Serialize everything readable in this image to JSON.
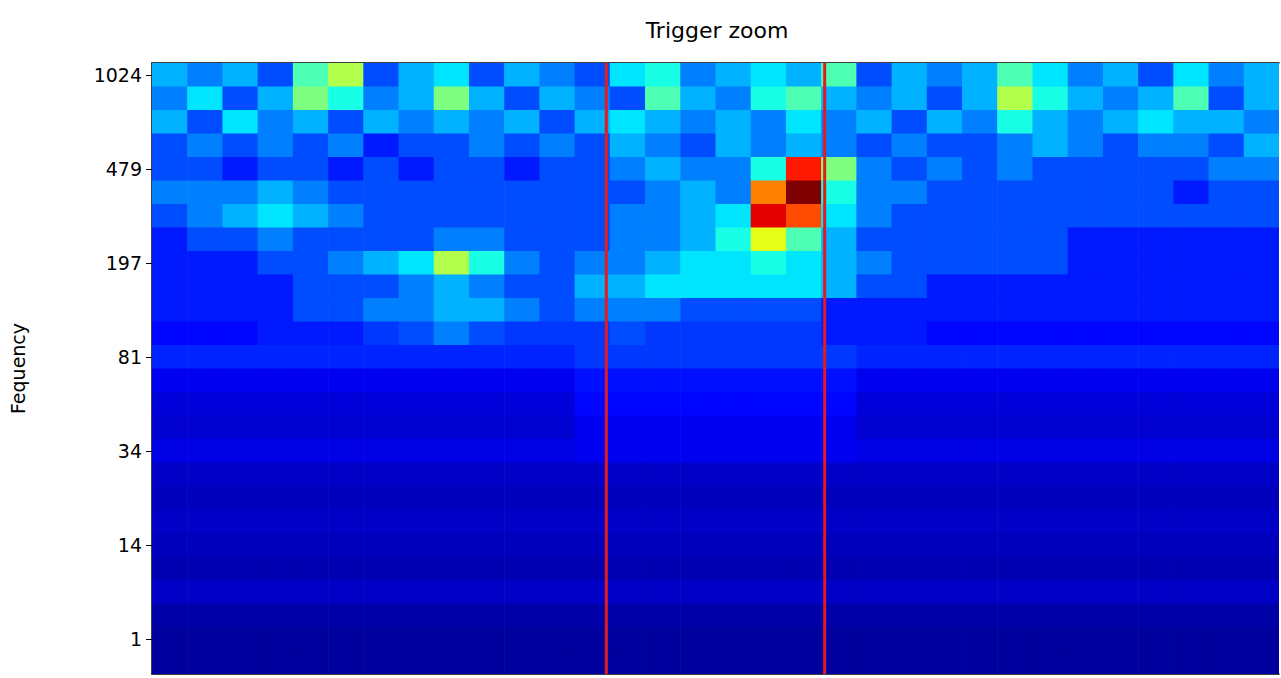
{
  "chart_data": {
    "type": "heatmap",
    "title": "Trigger zoom",
    "y_label": "Fequency",
    "y_categories": [
      "1024",
      null,
      null,
      null,
      "479",
      null,
      null,
      null,
      "197",
      null,
      null,
      null,
      "81",
      null,
      null,
      null,
      "34",
      null,
      null,
      null,
      "14",
      null,
      null,
      null,
      "1",
      null
    ],
    "x_edges": [
      0,
      1,
      2,
      3,
      4,
      5,
      6,
      7,
      8,
      9,
      10,
      11,
      12,
      13,
      14,
      15,
      16,
      17,
      18,
      19,
      20,
      21,
      22,
      23,
      24,
      25,
      26,
      27,
      28,
      29,
      30,
      31,
      32
    ],
    "xlim": [
      0,
      32
    ],
    "zlim": [
      0,
      10
    ],
    "z": [
      [
        3,
        2.5,
        3,
        2,
        4.5,
        5.5,
        2,
        3,
        3.5,
        2,
        3,
        2.5,
        2,
        3.5,
        4,
        2.5,
        3,
        3.5,
        3,
        4.5,
        2,
        3,
        2.5,
        3,
        4.5,
        3.5,
        2.5,
        3,
        2,
        3.5,
        2.5,
        3
      ],
      [
        2.5,
        3.5,
        2,
        3,
        5,
        4,
        2.5,
        3,
        5,
        3,
        2,
        3,
        2.5,
        2,
        4.5,
        3,
        2.5,
        4,
        4.5,
        3,
        2.5,
        3,
        2,
        3,
        5.5,
        4,
        3,
        2.5,
        3,
        4.5,
        2,
        3
      ],
      [
        3,
        2,
        3.5,
        2.5,
        3,
        2,
        3,
        2.5,
        3,
        2.5,
        3,
        2,
        3,
        3.5,
        3,
        2.5,
        3,
        2.5,
        3.5,
        2.5,
        3,
        2,
        3,
        2.5,
        4,
        3,
        2.5,
        3,
        3.5,
        3,
        3,
        2.5
      ],
      [
        2,
        2.5,
        2,
        2.5,
        2,
        2.5,
        1.5,
        2,
        2,
        2.5,
        2,
        2.5,
        2,
        3,
        2.5,
        2,
        3,
        2.5,
        3,
        2.5,
        2,
        2.5,
        2,
        2,
        2.5,
        3,
        2.5,
        2,
        2.5,
        2.5,
        2,
        3
      ],
      [
        2,
        2,
        1.5,
        2,
        2,
        1.5,
        2,
        1.5,
        2,
        2,
        1.5,
        2,
        2,
        2.5,
        3,
        2.5,
        2.5,
        4,
        8.5,
        5,
        2.5,
        2,
        2.5,
        2,
        2.5,
        2,
        2,
        2,
        2,
        2,
        2.5,
        2.5
      ],
      [
        2.5,
        2.5,
        2.5,
        3,
        2.5,
        2,
        2,
        2,
        2,
        2,
        2,
        2,
        2,
        2,
        2.5,
        3,
        2.5,
        7.5,
        10,
        4,
        2.5,
        2.5,
        2,
        2,
        2,
        2,
        2,
        2,
        2,
        1.5,
        2,
        2
      ],
      [
        2,
        2.5,
        3,
        3.5,
        3,
        2.5,
        2,
        2,
        2,
        2,
        2,
        2,
        2,
        2.5,
        2.5,
        3,
        3.5,
        9,
        8,
        3.5,
        2.5,
        2,
        2,
        2,
        2,
        2,
        2,
        2,
        2,
        2,
        2,
        2
      ],
      [
        1.5,
        2,
        2,
        2.5,
        2,
        2,
        2,
        2,
        2.5,
        2.5,
        2,
        2,
        2,
        2.5,
        2.5,
        3,
        4,
        6,
        4.5,
        3,
        2,
        2,
        2,
        2,
        2,
        2,
        1.5,
        1.5,
        1.5,
        1.5,
        1.5,
        1.5
      ],
      [
        1.5,
        1.5,
        1.5,
        2,
        2,
        2.5,
        3,
        3.5,
        5.5,
        4,
        2.5,
        2,
        2.5,
        2.5,
        3,
        3.5,
        3.5,
        4,
        3.5,
        3,
        2.5,
        2,
        2,
        2,
        2,
        2,
        1.5,
        1.5,
        1.5,
        1.5,
        1.5,
        1.5
      ],
      [
        1.5,
        1.5,
        1.5,
        1.5,
        2,
        2,
        2,
        2.5,
        3,
        2.5,
        2,
        2,
        3,
        3,
        3.5,
        3.5,
        3.5,
        3.5,
        3.5,
        3,
        2,
        2,
        1.5,
        1.5,
        1.5,
        1.5,
        1.5,
        1.5,
        1.5,
        1.5,
        1.5,
        1.5
      ],
      [
        1.5,
        1.5,
        1.5,
        1.5,
        2,
        2,
        2.5,
        2.5,
        3,
        3,
        2.5,
        2,
        2.5,
        2.5,
        2.5,
        2,
        2,
        2,
        2,
        1.5,
        1.5,
        1.5,
        1.5,
        1.5,
        1.5,
        1.5,
        1.5,
        1.5,
        1.5,
        1.5,
        1.5,
        1.5
      ],
      [
        1.3,
        1.3,
        1.3,
        1.5,
        1.5,
        1.5,
        1.8,
        2,
        2.5,
        2,
        1.8,
        1.8,
        1.8,
        2,
        1.8,
        1.8,
        1.8,
        1.8,
        1.8,
        1.5,
        1.5,
        1.5,
        1.3,
        1.3,
        1.3,
        1.3,
        1.3,
        1.3,
        1.3,
        1.3,
        1.3,
        1.3
      ],
      [
        1.6,
        1.6,
        1.6,
        1.6,
        1.6,
        1.6,
        1.6,
        1.6,
        1.6,
        1.6,
        1.6,
        1.6,
        1.8,
        1.8,
        1.8,
        1.8,
        1.8,
        1.8,
        1.8,
        1.8,
        1.6,
        1.6,
        1.6,
        1.6,
        1.6,
        1.6,
        1.6,
        1.6,
        1.6,
        1.6,
        1.6,
        1.6
      ],
      [
        1.1,
        1.1,
        1.1,
        1.1,
        1.1,
        1.1,
        1.1,
        1.1,
        1.1,
        1.1,
        1.1,
        1.1,
        1.4,
        1.4,
        1.4,
        1.4,
        1.4,
        1.4,
        1.4,
        1.4,
        1.1,
        1.1,
        1.1,
        1.1,
        1.1,
        1.1,
        1.1,
        1.1,
        1.1,
        1.1,
        1.1,
        1.1
      ],
      [
        0.9,
        0.9,
        0.9,
        0.9,
        0.9,
        0.9,
        0.9,
        0.9,
        0.9,
        0.9,
        0.9,
        0.9,
        1.3,
        1.3,
        1.3,
        1.3,
        1.3,
        1.3,
        1.3,
        1.3,
        0.9,
        0.9,
        0.9,
        0.9,
        0.9,
        0.9,
        0.9,
        0.9,
        0.9,
        0.9,
        0.9,
        0.9
      ],
      [
        0.8,
        0.8,
        0.8,
        0.8,
        0.8,
        0.8,
        0.8,
        0.8,
        0.8,
        0.8,
        0.8,
        0.8,
        1.1,
        1.1,
        1.1,
        1.1,
        1.1,
        1.1,
        1.1,
        1.1,
        0.8,
        0.8,
        0.8,
        0.8,
        0.8,
        0.8,
        0.8,
        0.8,
        0.8,
        0.8,
        0.8,
        0.8
      ],
      [
        1,
        1,
        1,
        1,
        1,
        1,
        1,
        1,
        1,
        1,
        1,
        1,
        1.1,
        1.1,
        1.1,
        1.1,
        1.1,
        1.1,
        1.1,
        1.1,
        1,
        1,
        1,
        1,
        1,
        1,
        1,
        1,
        1,
        1,
        1,
        1
      ],
      [
        0.7,
        0.7,
        0.7,
        0.7,
        0.7,
        0.7,
        0.7,
        0.7,
        0.7,
        0.7,
        0.7,
        0.7,
        0.7,
        0.7,
        0.7,
        0.7,
        0.7,
        0.7,
        0.7,
        0.7,
        0.7,
        0.7,
        0.7,
        0.7,
        0.7,
        0.7,
        0.7,
        0.7,
        0.7,
        0.7,
        0.7,
        0.7
      ],
      [
        0.6,
        0.6,
        0.6,
        0.6,
        0.6,
        0.6,
        0.6,
        0.6,
        0.6,
        0.6,
        0.6,
        0.6,
        0.6,
        0.6,
        0.6,
        0.6,
        0.6,
        0.6,
        0.6,
        0.6,
        0.6,
        0.6,
        0.6,
        0.6,
        0.6,
        0.6,
        0.6,
        0.6,
        0.6,
        0.6,
        0.6,
        0.6
      ],
      [
        0.7,
        0.7,
        0.7,
        0.7,
        0.7,
        0.7,
        0.7,
        0.7,
        0.7,
        0.7,
        0.7,
        0.7,
        0.7,
        0.7,
        0.7,
        0.7,
        0.7,
        0.7,
        0.7,
        0.7,
        0.7,
        0.7,
        0.7,
        0.7,
        0.7,
        0.7,
        0.7,
        0.7,
        0.7,
        0.7,
        0.7,
        0.7
      ],
      [
        0.6,
        0.6,
        0.6,
        0.6,
        0.6,
        0.6,
        0.6,
        0.6,
        0.6,
        0.6,
        0.6,
        0.6,
        0.6,
        0.6,
        0.6,
        0.6,
        0.6,
        0.6,
        0.6,
        0.6,
        0.6,
        0.6,
        0.6,
        0.6,
        0.6,
        0.6,
        0.6,
        0.6,
        0.6,
        0.6,
        0.6,
        0.6
      ],
      [
        0.5,
        0.5,
        0.5,
        0.5,
        0.5,
        0.5,
        0.5,
        0.5,
        0.5,
        0.5,
        0.5,
        0.5,
        0.5,
        0.5,
        0.5,
        0.5,
        0.5,
        0.5,
        0.5,
        0.5,
        0.5,
        0.5,
        0.5,
        0.5,
        0.5,
        0.5,
        0.5,
        0.5,
        0.5,
        0.5,
        0.5,
        0.5
      ],
      [
        0.7,
        0.7,
        0.7,
        0.7,
        0.7,
        0.7,
        0.7,
        0.7,
        0.7,
        0.7,
        0.7,
        0.7,
        0.7,
        0.7,
        0.7,
        0.7,
        0.7,
        0.7,
        0.7,
        0.7,
        0.7,
        0.7,
        0.7,
        0.7,
        0.7,
        0.7,
        0.7,
        0.7,
        0.7,
        0.7,
        0.7,
        0.7
      ],
      [
        0.4,
        0.4,
        0.4,
        0.4,
        0.4,
        0.4,
        0.4,
        0.4,
        0.4,
        0.4,
        0.4,
        0.4,
        0.4,
        0.4,
        0.4,
        0.4,
        0.4,
        0.4,
        0.4,
        0.4,
        0.4,
        0.4,
        0.4,
        0.4,
        0.4,
        0.4,
        0.4,
        0.4,
        0.4,
        0.4,
        0.4,
        0.4
      ],
      [
        0.3,
        0.3,
        0.3,
        0.3,
        0.3,
        0.3,
        0.3,
        0.3,
        0.3,
        0.3,
        0.3,
        0.3,
        0.3,
        0.3,
        0.3,
        0.3,
        0.3,
        0.3,
        0.3,
        0.3,
        0.3,
        0.3,
        0.3,
        0.3,
        0.3,
        0.3,
        0.3,
        0.3,
        0.3,
        0.3,
        0.3,
        0.3
      ],
      [
        0.3,
        0.3,
        0.3,
        0.3,
        0.3,
        0.3,
        0.3,
        0.3,
        0.3,
        0.3,
        0.3,
        0.3,
        0.3,
        0.3,
        0.3,
        0.3,
        0.3,
        0.3,
        0.3,
        0.3,
        0.3,
        0.3,
        0.3,
        0.3,
        0.3,
        0.3,
        0.3,
        0.3,
        0.3,
        0.3,
        0.3,
        0.3
      ]
    ],
    "vlines": {
      "x": [
        12.9,
        19.1
      ],
      "color": "#e41a1c"
    },
    "tick_labels": "y",
    "grid": false
  }
}
